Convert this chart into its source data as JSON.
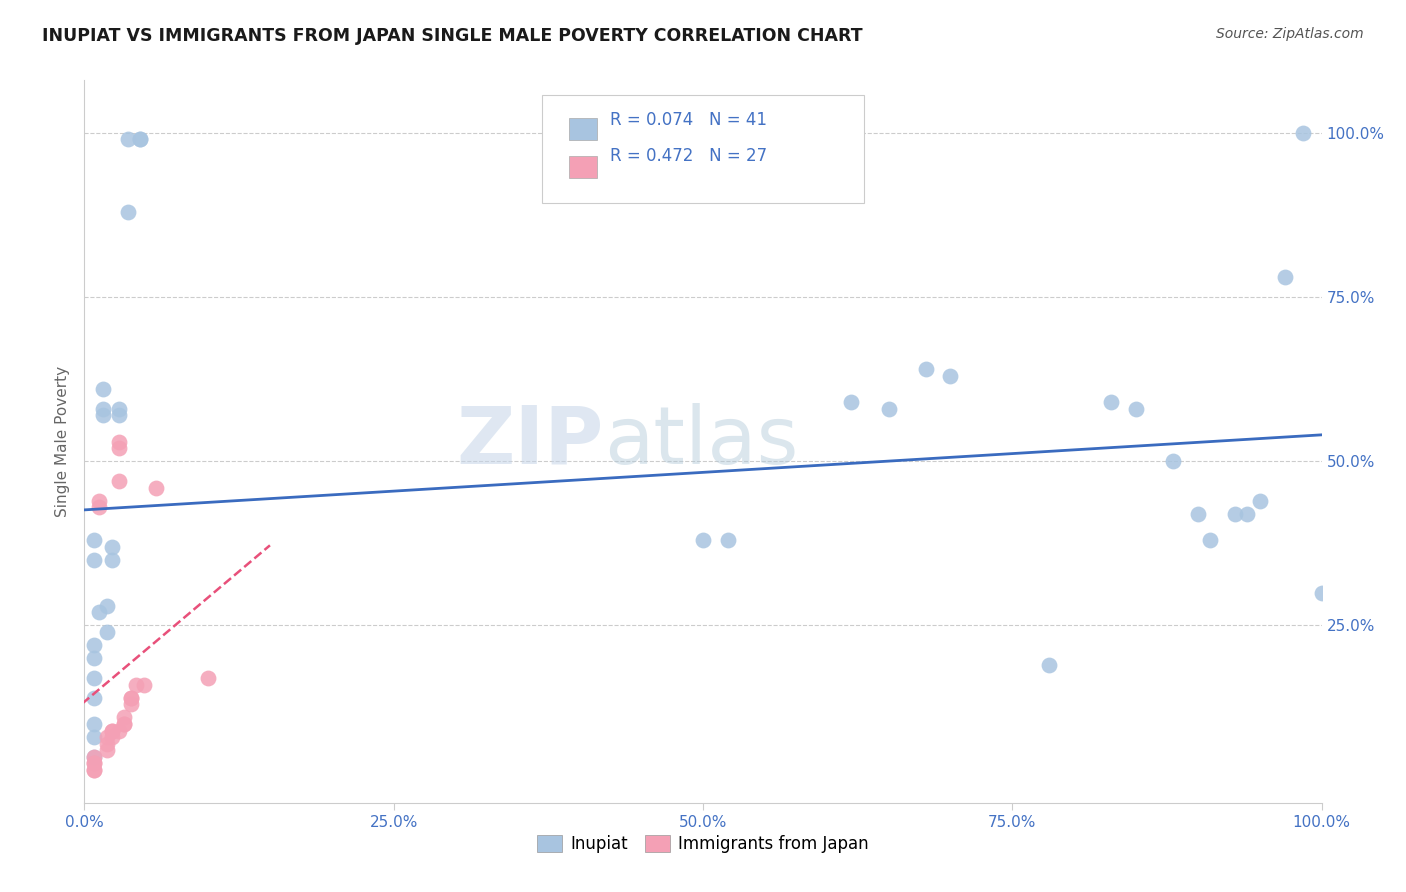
{
  "title": "INUPIAT VS IMMIGRANTS FROM JAPAN SINGLE MALE POVERTY CORRELATION CHART",
  "source": "Source: ZipAtlas.com",
  "ylabel": "Single Male Poverty",
  "xlim": [
    0.0,
    1.0
  ],
  "ylim": [
    -0.02,
    1.08
  ],
  "xtick_positions": [
    0.0,
    0.25,
    0.5,
    0.75,
    1.0
  ],
  "xtick_labels": [
    "0.0%",
    "25.0%",
    "50.0%",
    "75.0%",
    "100.0%"
  ],
  "ytick_positions": [
    0.25,
    0.5,
    0.75,
    1.0
  ],
  "ytick_labels": [
    "25.0%",
    "50.0%",
    "75.0%",
    "100.0%"
  ],
  "legend1_r": "R = 0.074",
  "legend1_n": "N = 41",
  "legend2_r": "R = 0.472",
  "legend2_n": "N = 27",
  "inupiat_color": "#a8c4e0",
  "japan_color": "#f4a0b5",
  "trend_inupiat_color": "#3a6bbf",
  "trend_japan_color": "#e8507a",
  "watermark_zip": "ZIP",
  "watermark_atlas": "atlas",
  "inupiat_x": [
    0.035,
    0.045,
    0.045,
    0.035,
    0.015,
    0.012,
    0.008,
    0.008,
    0.008,
    0.008,
    0.008,
    0.008,
    0.008,
    0.018,
    0.018,
    0.022,
    0.022,
    0.028,
    0.028,
    0.015,
    0.015,
    0.008,
    0.008,
    0.5,
    0.52,
    0.62,
    0.65,
    0.68,
    0.7,
    0.78,
    0.83,
    0.85,
    0.88,
    0.9,
    0.91,
    0.93,
    0.94,
    0.95,
    0.97,
    0.985,
    1.0
  ],
  "inupiat_y": [
    0.99,
    0.99,
    0.99,
    0.88,
    0.61,
    0.27,
    0.22,
    0.2,
    0.17,
    0.14,
    0.1,
    0.08,
    0.05,
    0.28,
    0.24,
    0.37,
    0.35,
    0.57,
    0.58,
    0.57,
    0.58,
    0.38,
    0.35,
    0.38,
    0.38,
    0.59,
    0.58,
    0.64,
    0.63,
    0.19,
    0.59,
    0.58,
    0.5,
    0.42,
    0.38,
    0.42,
    0.42,
    0.44,
    0.78,
    1.0,
    0.3
  ],
  "japan_x": [
    0.008,
    0.008,
    0.008,
    0.008,
    0.008,
    0.012,
    0.012,
    0.018,
    0.018,
    0.018,
    0.022,
    0.022,
    0.022,
    0.028,
    0.028,
    0.028,
    0.028,
    0.032,
    0.032,
    0.032,
    0.038,
    0.038,
    0.038,
    0.042,
    0.048,
    0.058,
    0.1
  ],
  "japan_y": [
    0.05,
    0.04,
    0.04,
    0.03,
    0.03,
    0.44,
    0.43,
    0.08,
    0.07,
    0.06,
    0.09,
    0.09,
    0.08,
    0.53,
    0.52,
    0.47,
    0.09,
    0.11,
    0.1,
    0.1,
    0.14,
    0.14,
    0.13,
    0.16,
    0.16,
    0.46,
    0.17
  ]
}
